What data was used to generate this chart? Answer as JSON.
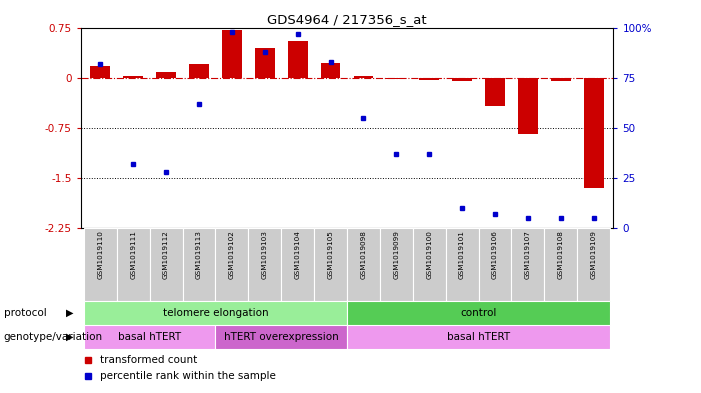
{
  "title": "GDS4964 / 217356_s_at",
  "samples": [
    "GSM1019110",
    "GSM1019111",
    "GSM1019112",
    "GSM1019113",
    "GSM1019102",
    "GSM1019103",
    "GSM1019104",
    "GSM1019105",
    "GSM1019098",
    "GSM1019099",
    "GSM1019100",
    "GSM1019101",
    "GSM1019106",
    "GSM1019107",
    "GSM1019108",
    "GSM1019109"
  ],
  "transformed_count": [
    0.18,
    0.02,
    0.08,
    0.2,
    0.72,
    0.45,
    0.55,
    0.22,
    0.02,
    -0.02,
    -0.03,
    -0.05,
    -0.42,
    -0.85,
    -0.05,
    -1.65
  ],
  "percentile_rank": [
    82,
    32,
    28,
    62,
    98,
    88,
    97,
    83,
    55,
    37,
    37,
    10,
    7,
    5,
    5,
    5
  ],
  "ylim_left": [
    -2.25,
    0.75
  ],
  "ylim_right": [
    0,
    100
  ],
  "yticks_left": [
    0.75,
    0,
    -0.75,
    -1.5,
    -2.25
  ],
  "yticks_right": [
    100,
    75,
    50,
    25,
    0
  ],
  "bar_color": "#cc0000",
  "dot_color": "#0000cc",
  "zero_line_color": "#cc0000",
  "grid_line_color": "#000000",
  "bg_color": "#ffffff",
  "protocol_groups": [
    {
      "label": "telomere elongation",
      "start": 0,
      "end": 8,
      "color": "#99ee99"
    },
    {
      "label": "control",
      "start": 8,
      "end": 16,
      "color": "#55cc55"
    }
  ],
  "genotype_groups": [
    {
      "label": "basal hTERT",
      "start": 0,
      "end": 4,
      "color": "#ee99ee"
    },
    {
      "label": "hTERT overexpression",
      "start": 4,
      "end": 8,
      "color": "#cc66cc"
    },
    {
      "label": "basal hTERT",
      "start": 8,
      "end": 16,
      "color": "#ee99ee"
    }
  ],
  "legend_red": "transformed count",
  "legend_blue": "percentile rank within the sample",
  "tick_bg_color": "#cccccc"
}
